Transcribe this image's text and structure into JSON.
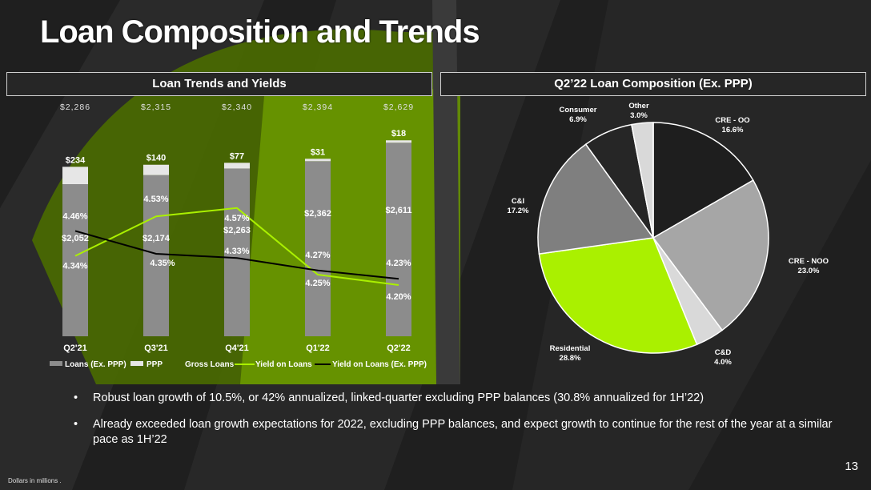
{
  "slide": {
    "title": "Loan Composition and Trends",
    "left_header": "Loan Trends and Yields",
    "right_header": "Q2’22 Loan Composition (Ex. PPP)",
    "bullets": [
      "Robust loan growth of 10.5%, or 42% annualized, linked-quarter excluding PPP balances (30.8% annualized for 1H’22)",
      "Already exceeded loan growth expectations for 2022, excluding PPP balances, and expect growth to continue for the rest of the year at a similar pace as 1H’22"
    ],
    "footnote": "Dollars in millions .",
    "page_number": "13"
  },
  "chart_data": [
    {
      "type": "bar",
      "categories": [
        "Q2'21",
        "Q3'21",
        "Q4'21",
        "Q1'22",
        "Q2'22"
      ],
      "series": [
        {
          "name": "Loans (Ex. PPP)",
          "values": [
            2052,
            2174,
            2263,
            2362,
            2611
          ],
          "labels": [
            "$2,052",
            "$2,174",
            "$2,263",
            "$2,362",
            "$2,611"
          ],
          "color": "#8c8c8c"
        },
        {
          "name": "PPP",
          "values": [
            234,
            140,
            77,
            31,
            18
          ],
          "labels": [
            "$234",
            "$140",
            "$77",
            "$31",
            "$18"
          ],
          "color": "#e6e6e6"
        },
        {
          "name": "Gross Loans",
          "values": [
            2286,
            2315,
            2340,
            2394,
            2629
          ],
          "labels": [
            "$2,286",
            "$2,315",
            "$2,340",
            "$2,394",
            "$2,629"
          ]
        },
        {
          "name": "Yield on Loans",
          "type": "line",
          "values": [
            4.34,
            4.53,
            4.57,
            4.25,
            4.2
          ],
          "labels": [
            "4.34%",
            "4.53%",
            "4.57%",
            "4.25%",
            "4.20%"
          ],
          "color": "#aaf000"
        },
        {
          "name": "Yield on Loans (Ex. PPP)",
          "type": "line",
          "values": [
            4.46,
            4.35,
            4.33,
            4.27,
            4.23
          ],
          "labels": [
            "4.46%",
            "4.35%",
            "4.33%",
            "4.27%",
            "4.23%"
          ],
          "color": "#000000"
        }
      ],
      "stacked": true,
      "legend": "bottom"
    },
    {
      "type": "pie",
      "slices": [
        {
          "label": "CRE - OO",
          "value": 16.6,
          "pct": "16.6%",
          "color": "#1e1e1e"
        },
        {
          "label": "CRE - NOO",
          "value": 23.0,
          "pct": "23.0%",
          "color": "#a6a6a6"
        },
        {
          "label": "C&D",
          "value": 4.0,
          "pct": "4.0%",
          "color": "#d9d9d9"
        },
        {
          "label": "Residential",
          "value": 28.8,
          "pct": "28.8%",
          "color": "#aaf000"
        },
        {
          "label": "C&I",
          "value": 17.2,
          "pct": "17.2%",
          "color": "#7f7f7f"
        },
        {
          "label": "Consumer",
          "value": 6.9,
          "pct": "6.9%",
          "color": "#262626"
        },
        {
          "label": "Other",
          "value": 3.0,
          "pct": "3.0%",
          "color": "#d9d9d9"
        }
      ],
      "legend": "none"
    }
  ]
}
